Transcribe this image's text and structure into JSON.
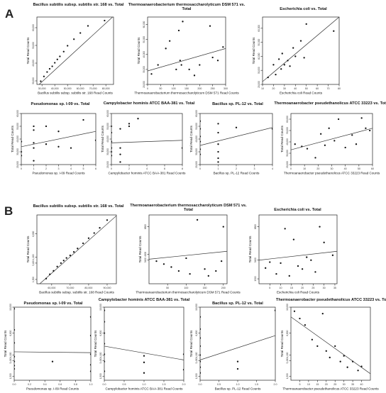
{
  "panels": [
    {
      "letter": "A"
    },
    {
      "letter": "B"
    }
  ],
  "chart_data": [
    {
      "panel": "A",
      "type": "scatter",
      "title": "Bacillus subtilis subsp. subtilis str. 168 vs. Total",
      "xlabel": "Bacillus subtilis subsp. subtilis str. 168 Read Counts",
      "ylabel": "Total Read Counts",
      "xlim": [
        26000,
        86000
      ],
      "ylim": [
        28000,
        66000
      ],
      "xticks": [
        "30,000",
        "40,000",
        "50,000",
        "60,000",
        "70,000",
        "80,000"
      ],
      "xtick_values": [
        30000,
        40000,
        50000,
        60000,
        70000,
        80000
      ],
      "yticks": [
        "30,000",
        "40,000",
        "50,000",
        "60,000"
      ],
      "ytick_values": [
        30000,
        40000,
        50000,
        60000
      ],
      "x": [
        29000,
        31500,
        34000,
        36000,
        38000,
        40000,
        42000,
        44000,
        47000,
        50000,
        55000,
        60000,
        66000,
        79000
      ],
      "y": [
        29800,
        32500,
        35000,
        36800,
        38200,
        40200,
        42100,
        43800,
        46500,
        49800,
        53500,
        57000,
        61000,
        64000
      ],
      "fit": {
        "x1": 27000,
        "y1": 27500,
        "x2": 86000,
        "y2": 66500
      }
    },
    {
      "panel": "A",
      "type": "scatter",
      "title": "Thermoanaerobacterium thermosaccharolyticum DSM 571 vs. Total",
      "xlabel": "Thermoanaerobacterium thermosaccharolyticum DSM 571 Read Counts",
      "ylabel": "Total Read Counts",
      "xlim": [
        0,
        300
      ],
      "ylim": [
        20000,
        65000
      ],
      "xticks": [
        "0",
        "50",
        "100",
        "150",
        "200",
        "250",
        "300"
      ],
      "xtick_values": [
        0,
        50,
        100,
        150,
        200,
        250,
        300
      ],
      "yticks": [
        "20,000",
        "30,000",
        "40,000",
        "50,000",
        "60,000"
      ],
      "ytick_values": [
        20000,
        30000,
        40000,
        50000,
        60000
      ],
      "x": [
        15,
        40,
        70,
        85,
        110,
        120,
        125,
        130,
        135,
        160,
        180,
        200,
        240,
        250,
        270,
        290
      ],
      "y": [
        27000,
        33000,
        44000,
        49000,
        30000,
        56000,
        36000,
        33000,
        62000,
        30000,
        26000,
        33000,
        59000,
        38000,
        36000,
        45000
      ],
      "fit": {
        "x1": 0,
        "y1": 29000,
        "x2": 300,
        "y2": 44000
      }
    },
    {
      "panel": "A",
      "type": "scatter",
      "title": "Escherichia coli vs. Total",
      "xlabel": "Escherichia coli Read Counts",
      "ylabel": "Total Read Counts",
      "xlim": [
        10,
        80
      ],
      "ylim": [
        20000,
        68000
      ],
      "xticks": [
        "10",
        "20",
        "30",
        "40",
        "50",
        "60",
        "70",
        "80"
      ],
      "xtick_values": [
        10,
        20,
        30,
        40,
        50,
        60,
        70,
        80
      ],
      "yticks": [
        "20,000",
        "30,000",
        "40,000",
        "50,000",
        "60,000"
      ],
      "ytick_values": [
        20000,
        30000,
        40000,
        50000,
        60000
      ],
      "x": [
        15,
        20,
        22,
        25,
        27,
        28,
        30,
        33,
        35,
        38,
        40,
        45,
        48,
        50,
        75
      ],
      "y": [
        25000,
        34000,
        27000,
        38000,
        31000,
        42000,
        34000,
        37000,
        33000,
        46000,
        40000,
        51000,
        39000,
        63000,
        58000
      ],
      "fit": {
        "x1": 10,
        "y1": 22000,
        "x2": 80,
        "y2": 68000
      }
    },
    {
      "panel": "A",
      "type": "scatter",
      "title": "Pseudomonas sp. I-09 vs. Total",
      "xlabel": "Pseudomonas sp. I-09 Read Counts",
      "ylabel": "Total Read Counts",
      "xlim": [
        0,
        6
      ],
      "ylim": [
        20000,
        60000
      ],
      "xticks": [
        "0",
        "1",
        "2",
        "3",
        "4",
        "5",
        "6"
      ],
      "xtick_values": [
        0,
        1,
        2,
        3,
        4,
        5,
        6
      ],
      "yticks": [
        "20,000",
        "30,000",
        "40,000",
        "50,000",
        "60,000"
      ],
      "ytick_values": [
        20000,
        30000,
        40000,
        50000,
        60000
      ],
      "x": [
        0,
        0,
        0,
        1,
        1,
        1,
        1,
        1,
        2,
        2,
        3,
        3,
        4,
        5,
        6
      ],
      "y": [
        38000,
        30000,
        27000,
        50000,
        47000,
        37000,
        33000,
        23000,
        50000,
        36000,
        46000,
        34000,
        33000,
        55000,
        39000
      ],
      "fit": {
        "x1": 0,
        "y1": 34000,
        "x2": 6,
        "y2": 46000
      }
    },
    {
      "panel": "A",
      "type": "scatter",
      "title": "Campylobacter hominis ATCC BAA-381 vs. Total",
      "xlabel": "Campylobacter hominis ATCC BAA-381 Read Counts",
      "ylabel": "Total Read Counts",
      "xlim": [
        0,
        8
      ],
      "ylim": [
        20000,
        60000
      ],
      "xticks": [
        "0",
        "2",
        "4",
        "6",
        "8"
      ],
      "xtick_values": [
        0,
        2,
        4,
        6,
        8
      ],
      "yticks": [
        "20,000",
        "30,000",
        "40,000",
        "50,000",
        "60,000"
      ],
      "ytick_values": [
        20000,
        30000,
        40000,
        50000,
        60000
      ],
      "x": [
        0,
        0,
        0,
        0,
        0,
        0,
        1,
        1,
        1,
        1,
        2,
        2,
        3,
        8
      ],
      "y": [
        50000,
        45000,
        38000,
        33000,
        30000,
        27000,
        48000,
        33000,
        28000,
        22000,
        52000,
        50000,
        56000,
        33000
      ],
      "fit": {
        "x1": 0,
        "y1": 37000,
        "x2": 8,
        "y2": 39000
      }
    },
    {
      "panel": "A",
      "type": "scatter",
      "title": "Bacillus sp. PL-12 vs. Total",
      "xlabel": "Bacillus sp. PL-12 Read Counts",
      "ylabel": "Total Read Counts",
      "xlim": [
        0,
        4
      ],
      "ylim": [
        20000,
        60000
      ],
      "xticks": [
        "0",
        "1",
        "2",
        "3",
        "4"
      ],
      "xtick_values": [
        0,
        1,
        2,
        3,
        4
      ],
      "yticks": [
        "20,000",
        "30,000",
        "40,000",
        "50,000",
        "60,000"
      ],
      "ytick_values": [
        20000,
        30000,
        40000,
        50000,
        60000
      ],
      "x": [
        0,
        0,
        0,
        0,
        0,
        0,
        1,
        1,
        1,
        1,
        1,
        1,
        2,
        4
      ],
      "y": [
        54000,
        48000,
        42000,
        38000,
        32000,
        28000,
        52000,
        45000,
        36000,
        30000,
        25000,
        22000,
        49000,
        48000
      ],
      "fit": {
        "x1": 0,
        "y1": 35000,
        "x2": 4,
        "y2": 49000
      }
    },
    {
      "panel": "A",
      "type": "scatter",
      "title": "Thermoanaerobacter pseudethanolicus ATCC 33223 vs. Total",
      "xlabel": "Thermoanaerobacter pseudethanolicus ATCC 33223 Read Counts",
      "ylabel": "Total Read Counts",
      "xlim": [
        0,
        60
      ],
      "ylim": [
        20000,
        65000
      ],
      "xticks": [
        "0",
        "10",
        "20",
        "30",
        "40",
        "50",
        "60"
      ],
      "xtick_values": [
        0,
        10,
        20,
        30,
        40,
        50,
        60
      ],
      "yticks": [
        "20,000",
        "30,000",
        "40,000",
        "50,000",
        "60,000"
      ],
      "ytick_values": [
        20000,
        30000,
        40000,
        50000,
        60000
      ],
      "x": [
        3,
        8,
        12,
        18,
        22,
        25,
        28,
        32,
        35,
        40,
        45,
        48,
        52,
        55,
        58
      ],
      "y": [
        38000,
        36000,
        34000,
        26000,
        47000,
        37000,
        52000,
        41000,
        60000,
        35000,
        46000,
        38000,
        61000,
        52000,
        50000
      ],
      "fit": {
        "x1": 0,
        "y1": 33000,
        "x2": 60,
        "y2": 52000
      }
    },
    {
      "panel": "B",
      "type": "scatter",
      "title": "Bacillus subtilis subsp. subtilis str. 168 vs. Total",
      "xlabel": "Bacillus subtilis subsp. subtilis str. 168 Read Counts",
      "ylabel": "Total Read Counts",
      "xlim": [
        52000,
        95000
      ],
      "ylim": [
        1000,
        9000
      ],
      "xticks": [
        "60,000",
        "70,000",
        "80,000",
        "90,000"
      ],
      "xtick_values": [
        60000,
        70000,
        80000,
        90000
      ],
      "yticks": [
        "1,500",
        "3,400",
        "4,100",
        "6,800"
      ],
      "ytick_values": [
        1500,
        3400,
        4100,
        6800
      ],
      "x": [
        57000,
        59000,
        61000,
        63000,
        65000,
        66500,
        68000,
        70000,
        72000,
        74000,
        77000,
        80000,
        83000,
        86000,
        90000
      ],
      "y": [
        1600,
        2100,
        2500,
        3000,
        3400,
        3700,
        4000,
        4300,
        4700,
        5100,
        5700,
        6300,
        6900,
        7500,
        8400
      ],
      "fit": {
        "x1": 52000,
        "y1": 700,
        "x2": 95000,
        "y2": 8900
      }
    },
    {
      "panel": "B",
      "type": "scatter",
      "title": "Thermoanaerobacterium thermosaccharolyticum DSM 571 vs. Total",
      "xlabel": "Thermoanaerobacterium thermosaccharolyticum DSM 571 Read Counts",
      "ylabel": "Total Read Counts",
      "xlim": [
        0,
        210
      ],
      "ylim": [
        1000,
        8000
      ],
      "xticks": [
        "50",
        "100",
        "150",
        "200"
      ],
      "xtick_values": [
        50,
        100,
        150,
        200
      ],
      "yticks": [
        "3400",
        "4000",
        "6800"
      ],
      "ytick_values": [
        3400,
        4000,
        6800
      ],
      "x": [
        20,
        40,
        60,
        80,
        100,
        110,
        130,
        150,
        160,
        180,
        195,
        200
      ],
      "y": [
        3300,
        3000,
        2700,
        2300,
        3600,
        2000,
        7500,
        2500,
        1800,
        2300,
        3300,
        6800
      ],
      "fit": {
        "x1": 0,
        "y1": 3500,
        "x2": 210,
        "y2": 4300
      }
    },
    {
      "panel": "B",
      "type": "scatter",
      "title": "Escherichia coli vs. Total",
      "xlabel": "Escherichia coli Read Counts",
      "ylabel": "Total Read Counts",
      "xlim": [
        0,
        36
      ],
      "ylim": [
        1000,
        8000
      ],
      "xticks": [
        "5",
        "10",
        "15",
        "20",
        "25",
        "30",
        "35"
      ],
      "xtick_values": [
        5,
        10,
        15,
        20,
        25,
        30,
        35
      ],
      "yticks": [
        "1500",
        "3400",
        "6800"
      ],
      "ytick_values": [
        1500,
        3400,
        6800
      ],
      "x": [
        3,
        5,
        8,
        10,
        12,
        14,
        16,
        18,
        20,
        22,
        24,
        26,
        28,
        30,
        34
      ],
      "y": [
        2600,
        3200,
        2000,
        3100,
        6600,
        1800,
        5500,
        2800,
        2500,
        3700,
        3400,
        2200,
        6800,
        5200,
        3900
      ],
      "fit": {
        "x1": 0,
        "y1": 3400,
        "x2": 36,
        "y2": 4300
      }
    },
    {
      "panel": "B",
      "type": "scatter",
      "title": "Pseudomonas sp. I-09 vs. Total",
      "xlabel": "Pseudomonas sp. I-09 Read Counts",
      "ylabel": "Total Read Counts",
      "xlim": [
        0,
        1
      ],
      "ylim": [
        1000,
        10000
      ],
      "xticks": [
        "0.0",
        "0.2",
        "0.4",
        "0.6",
        "0.8",
        "1.0"
      ],
      "xtick_values": [
        0,
        0.2,
        0.4,
        0.6,
        0.8,
        1.0
      ],
      "yticks": [
        "1,500",
        "3,400",
        "4,100",
        "6,800",
        "10,000"
      ],
      "ytick_values": [
        1500,
        3400,
        4100,
        6800,
        10000
      ],
      "x": [
        0,
        0,
        0,
        0,
        0,
        0,
        0,
        0.5,
        1,
        1,
        1,
        1,
        1
      ],
      "y": [
        9800,
        7200,
        5600,
        3900,
        3300,
        2800,
        2400,
        3300,
        8800,
        6500,
        4200,
        2900,
        2100
      ],
      "fit": {
        "x1": 0,
        "y1": 4500,
        "x2": 1,
        "y2": 4400
      }
    },
    {
      "panel": "B",
      "type": "scatter",
      "title": "Campylobacter hominis ATCC BAA-381 vs. Total",
      "xlabel": "Campylobacter hominis ATCC BAA-381 Read Counts",
      "ylabel": "Total Read Counts",
      "xlim": [
        0,
        2
      ],
      "ylim": [
        1000,
        10000
      ],
      "xticks": [
        "0.0",
        "0.5",
        "1.0",
        "1.5",
        "2.0"
      ],
      "xtick_values": [
        0,
        0.5,
        1.0,
        1.5,
        2.0
      ],
      "yticks": [
        "1,500",
        "3,400",
        "4,100",
        "6,800",
        "10,000"
      ],
      "ytick_values": [
        1500,
        3400,
        4100,
        6800,
        10000
      ],
      "x": [
        0,
        0,
        0,
        0,
        0,
        0,
        0,
        1,
        1,
        1,
        2,
        2
      ],
      "y": [
        9600,
        8200,
        6800,
        5500,
        4200,
        3300,
        2100,
        4000,
        3200,
        1900,
        4200,
        2300
      ],
      "fit": {
        "x1": 0,
        "y1": 5200,
        "x2": 2,
        "y2": 3500
      }
    },
    {
      "panel": "B",
      "type": "scatter",
      "title": "Bacillus sp. PL-12 vs. Total",
      "xlabel": "Bacillus sp. PL-12 Read Counts",
      "ylabel": "Total Read Counts",
      "xlim": [
        0,
        2
      ],
      "ylim": [
        1000,
        10000
      ],
      "xticks": [
        "0.0",
        "0.5",
        "1.0",
        "1.5",
        "2.0"
      ],
      "xtick_values": [
        0,
        0.5,
        1.0,
        1.5,
        2.0
      ],
      "yticks": [
        "1,500",
        "3,400",
        "4,100",
        "6,800",
        "10,000"
      ],
      "ytick_values": [
        1500,
        3400,
        4100,
        6800,
        10000
      ],
      "x": [
        0,
        0,
        0,
        0,
        0,
        0,
        0,
        0,
        1,
        1,
        2
      ],
      "y": [
        8800,
        7300,
        6200,
        5200,
        4100,
        3300,
        2600,
        1900,
        3300,
        2400,
        9600
      ],
      "fit": {
        "x1": 0,
        "y1": 3500,
        "x2": 2,
        "y2": 6500
      }
    },
    {
      "panel": "B",
      "type": "scatter",
      "title": "Thermoanaerobacter pseudethanolicus ATCC 33223 vs. Total",
      "xlabel": "Thermoanaerobacter pseudethanolicus ATCC 33223 Read Counts",
      "ylabel": "Total Read Counts",
      "xlim": [
        0,
        45
      ],
      "ylim": [
        1000,
        10000
      ],
      "xticks": [
        "5",
        "10",
        "15",
        "20",
        "25",
        "30",
        "35",
        "40"
      ],
      "xtick_values": [
        5,
        10,
        15,
        20,
        25,
        30,
        35,
        40
      ],
      "yticks": [
        "1,500",
        "3,400",
        "4,100",
        "6,800",
        "10,000"
      ],
      "ytick_values": [
        1500,
        3400,
        4100,
        6800,
        10000
      ],
      "x": [
        2,
        5,
        8,
        12,
        15,
        18,
        20,
        22,
        25,
        28,
        30,
        32,
        35,
        38,
        40
      ],
      "y": [
        9500,
        8600,
        7800,
        6000,
        5200,
        9200,
        4600,
        3800,
        5200,
        3300,
        4000,
        2600,
        3300,
        2200,
        2700
      ],
      "fit": {
        "x1": 0,
        "y1": 8800,
        "x2": 45,
        "y2": 1800
      }
    }
  ]
}
